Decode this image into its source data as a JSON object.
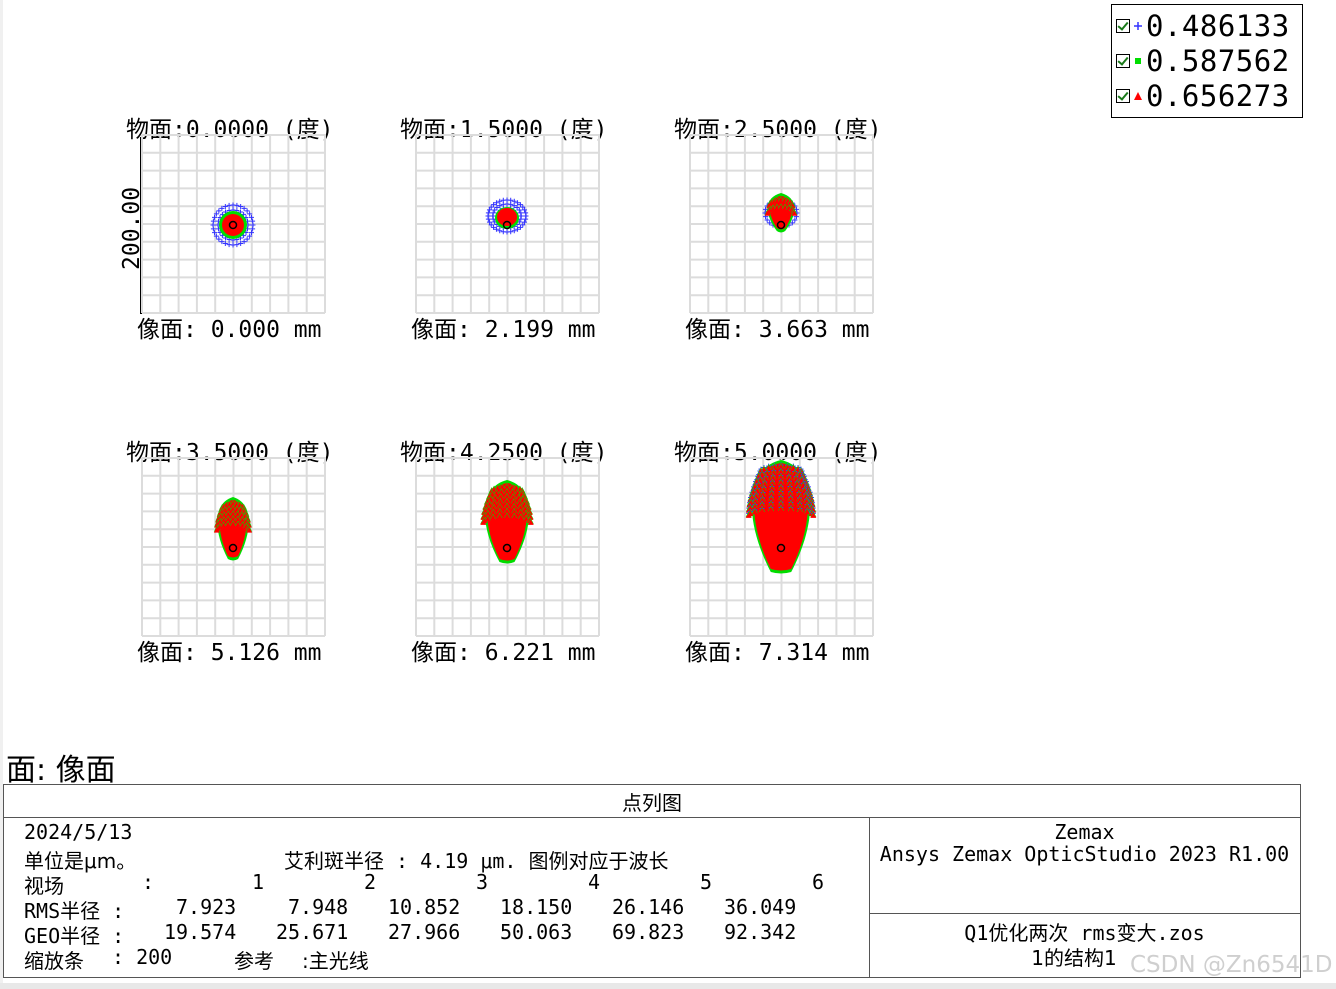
{
  "legend": [
    {
      "value": "0.486133",
      "color": "#3333ff",
      "symbol": "plus"
    },
    {
      "value": "0.587562",
      "color": "#00dd00",
      "symbol": "square"
    },
    {
      "value": "0.656273",
      "color": "#ff0000",
      "symbol": "triangle"
    }
  ],
  "scale_bar_label": "200.00",
  "panels": [
    {
      "title": "物面:0.0000 (度)",
      "image": "像面: 0.000 mm",
      "spot": "round-small"
    },
    {
      "title": "物面:1.5000 (度)",
      "image": "像面: 2.199 mm",
      "spot": "round-small-offset"
    },
    {
      "title": "物面:2.5000 (度)",
      "image": "像面: 3.663 mm",
      "spot": "teardrop-small"
    },
    {
      "title": "物面:3.5000 (度)",
      "image": "像面: 5.126 mm",
      "spot": "teardrop-medium"
    },
    {
      "title": "物面:4.2500 (度)",
      "image": "像面: 6.221 mm",
      "spot": "teardrop-large"
    },
    {
      "title": "物面:5.0000 (度)",
      "image": "像面: 7.314 mm",
      "spot": "teardrop-xlarge"
    }
  ],
  "surface_label": "面: 像面",
  "info": {
    "title": "点列图",
    "date": "2024/5/13",
    "units": "单位是μm。",
    "airy": "艾利斑半径 : 4.19 μm. 图例对应于波长",
    "field_label": "视场",
    "field_colon": ":",
    "fields": [
      "1",
      "2",
      "3",
      "4",
      "5",
      "6"
    ],
    "rms_label": "RMS半径 :",
    "rms": [
      "7.923",
      "7.948",
      "10.852",
      "18.150",
      "26.146",
      "36.049"
    ],
    "geo_label": "GEO半径 :",
    "geo": [
      "19.574",
      "25.671",
      "27.966",
      "50.063",
      "69.823",
      "92.342"
    ],
    "scale_label": "缩放条",
    "scale_value": ": 200",
    "ref_label": "参考",
    "ref_value": ":主光线",
    "software_name": "Zemax",
    "software_version": "Ansys Zemax OpticStudio 2023 R1.00",
    "file_name": "Q1优化两次 rms变大.zos",
    "config": "1的结构1"
  },
  "watermark": "CSDN @Zn6541D"
}
